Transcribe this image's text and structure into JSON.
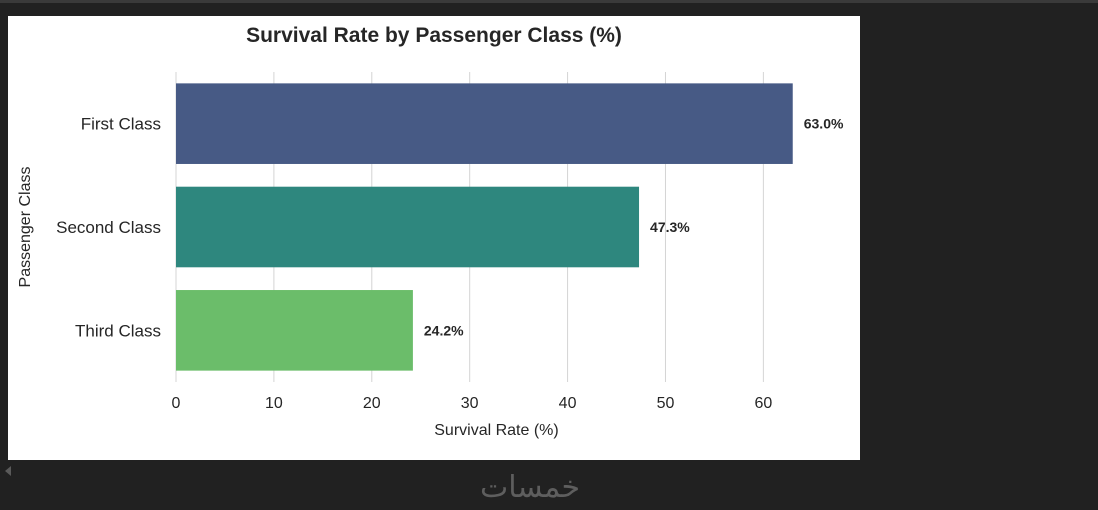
{
  "chart_data": {
    "type": "bar",
    "orientation": "horizontal",
    "title": "Survival Rate by Passenger Class (%)",
    "xlabel": "Survival Rate (%)",
    "ylabel": "Passenger Class",
    "categories": [
      "First Class",
      "Second Class",
      "Third Class"
    ],
    "values": [
      63.0,
      47.3,
      24.2
    ],
    "value_labels": [
      "63.0%",
      "47.3%",
      "24.2%"
    ],
    "colors": [
      "#475a85",
      "#2e877e",
      "#6bbd6a"
    ],
    "xlim": [
      0,
      66.5
    ],
    "xticks": [
      0,
      10,
      20,
      30,
      40,
      50,
      60
    ],
    "grid": "vertical",
    "legend": "none"
  },
  "watermark": "خمسات"
}
